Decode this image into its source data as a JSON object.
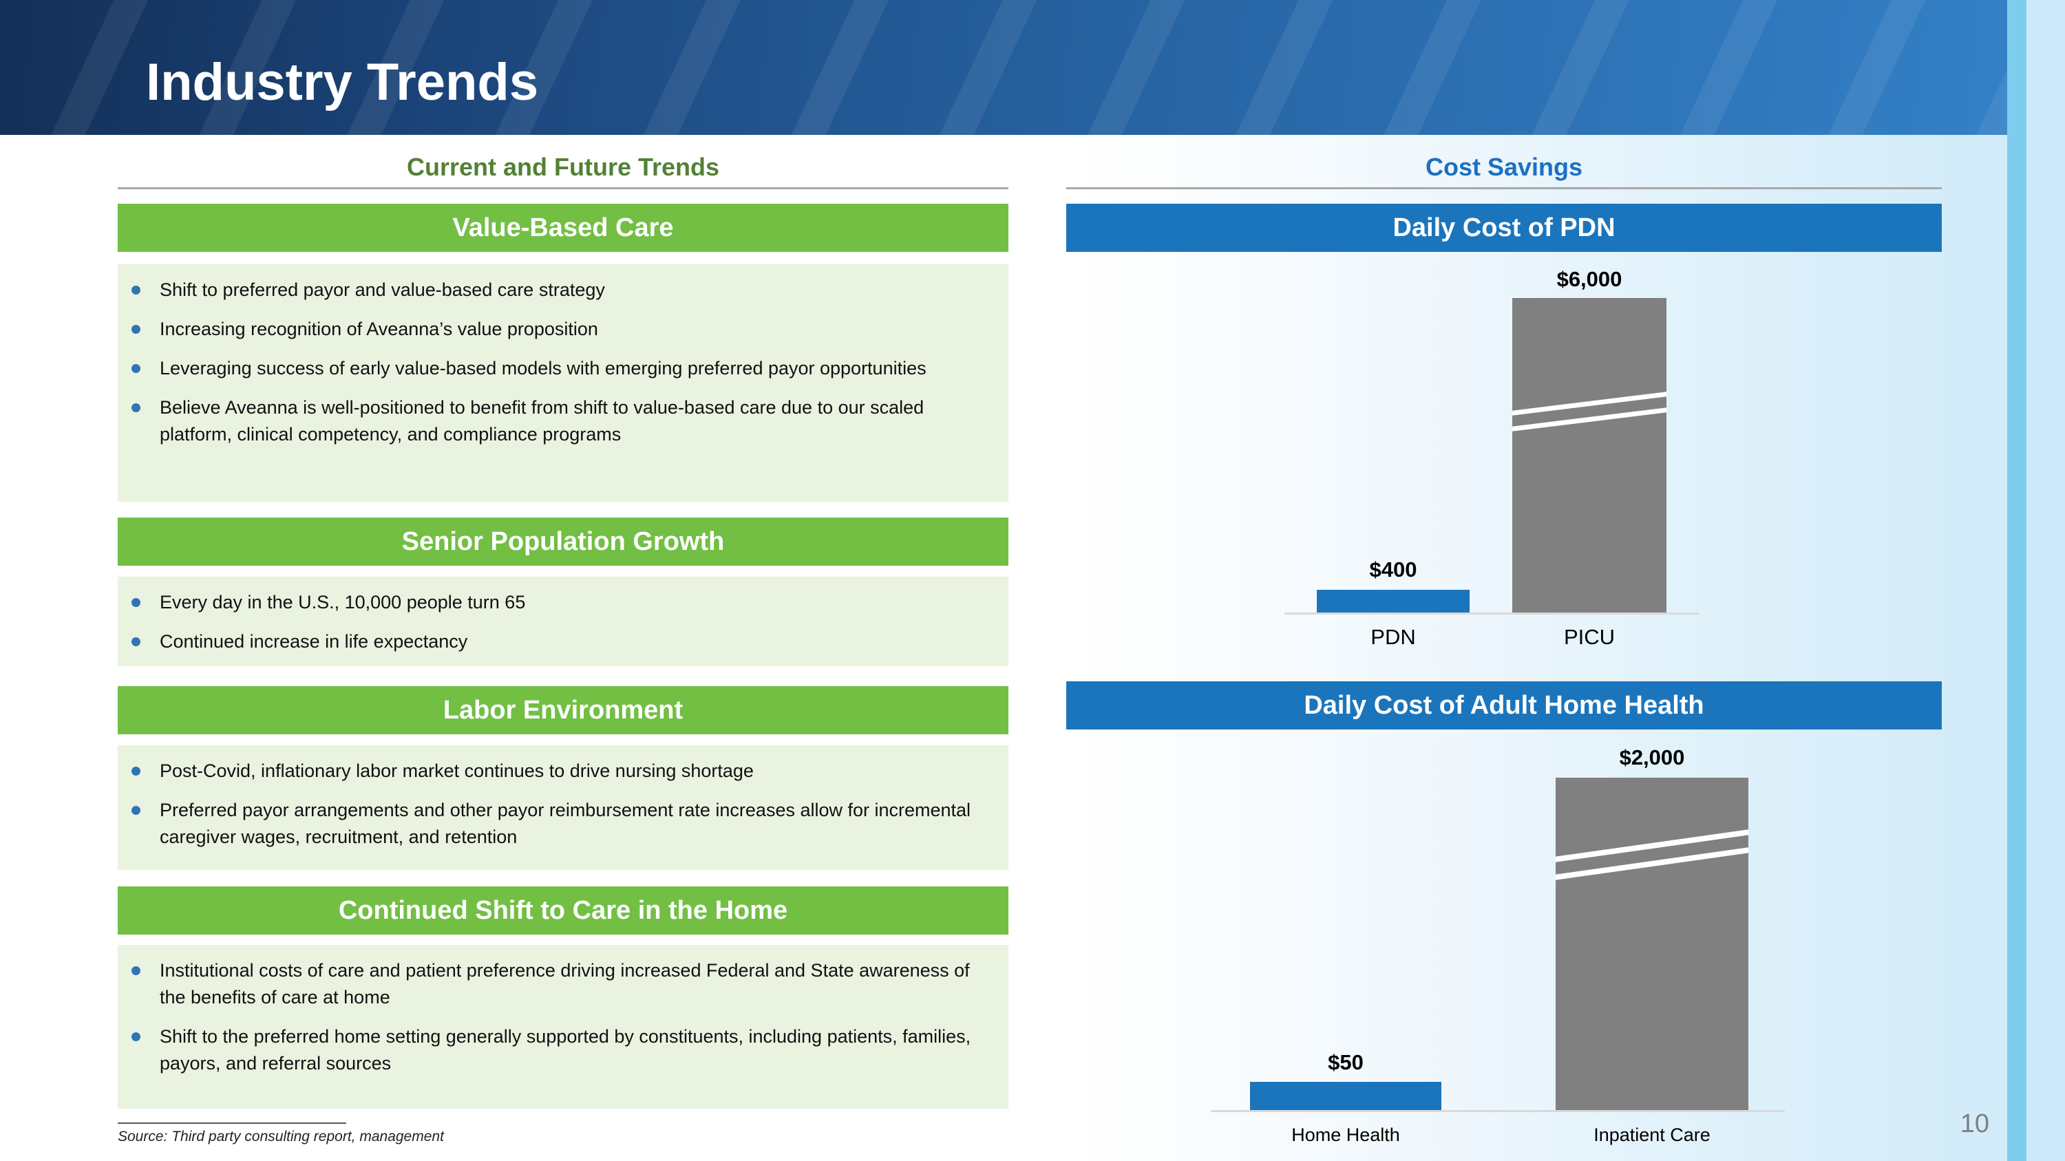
{
  "page": {
    "title": "Industry Trends",
    "page_number": "10",
    "source": "Source: Third party consulting report, management"
  },
  "left_column": {
    "title": "Current and Future Trends",
    "sections": [
      {
        "header": "Value-Based Care",
        "bullets": [
          "Shift to preferred payor and value-based care strategy",
          "Increasing recognition of Aveanna’s value proposition",
          "Leveraging success of early value-based models with emerging preferred payor opportunities",
          "Believe Aveanna is well-positioned to benefit from shift to value-based care due to our scaled platform, clinical competency, and compliance programs"
        ]
      },
      {
        "header": "Senior Population Growth",
        "bullets": [
          "Every day in the U.S., 10,000 people turn 65",
          "Continued increase in life expectancy"
        ]
      },
      {
        "header": "Labor Environment",
        "bullets": [
          "Post-Covid, inflationary labor market continues to drive nursing shortage",
          "Preferred payor arrangements and other payor reimbursement rate increases allow for incremental caregiver wages, recruitment, and retention"
        ]
      },
      {
        "header": "Continued Shift to Care in the Home",
        "bullets": [
          "Institutional costs of care and patient preference driving increased Federal and State awareness of the benefits of care at home",
          "Shift to the preferred home setting generally supported by constituents, including patients, families, payors, and referral sources"
        ]
      }
    ]
  },
  "right_column": {
    "title": "Cost Savings",
    "charts": [
      {
        "header": "Daily Cost of PDN",
        "bars": [
          {
            "category": "PDN",
            "value_label": "$400"
          },
          {
            "category": "PICU",
            "value_label": "$6,000"
          }
        ]
      },
      {
        "header": "Daily Cost of Adult Home Health",
        "bars": [
          {
            "category": "Home Health",
            "value_label": "$50"
          },
          {
            "category": "Inpatient Care",
            "value_label": "$2,000"
          }
        ]
      }
    ]
  },
  "chart_data": [
    {
      "type": "bar",
      "title": "Daily Cost of PDN",
      "categories": [
        "PDN",
        "PICU"
      ],
      "values": [
        400,
        6000
      ],
      "value_labels": [
        "$400",
        "$6,000"
      ],
      "series_colors": [
        "#1B75BC",
        "#808080"
      ],
      "xlabel": "",
      "ylabel": "",
      "gridlines": false,
      "legend": false,
      "axis_break": "PICU bar drawn truncated with white break marks"
    },
    {
      "type": "bar",
      "title": "Daily Cost of Adult Home Health",
      "categories": [
        "Home Health",
        "Inpatient Care"
      ],
      "values": [
        50,
        2000
      ],
      "value_labels": [
        "$50",
        "$2,000"
      ],
      "series_colors": [
        "#1B75BC",
        "#808080"
      ],
      "xlabel": "",
      "ylabel": "",
      "gridlines": false,
      "legend": false,
      "axis_break": "Inpatient Care bar drawn truncated with white break marks"
    }
  ],
  "colors": {
    "banner_gradient_start": "#132F57",
    "banner_gradient_end": "#3480C6",
    "green_header": "#72BF44",
    "green_panel": "#E9F3E0",
    "green_title": "#538135",
    "blue_header": "#1B75BC",
    "blue_title": "#1C70C0",
    "bar_blue": "#1B75BC",
    "bar_gray": "#808080",
    "bullet_dot": "#2E75B6",
    "edge_stripe": "#7FCDEE",
    "page_number_gray": "#808080"
  }
}
